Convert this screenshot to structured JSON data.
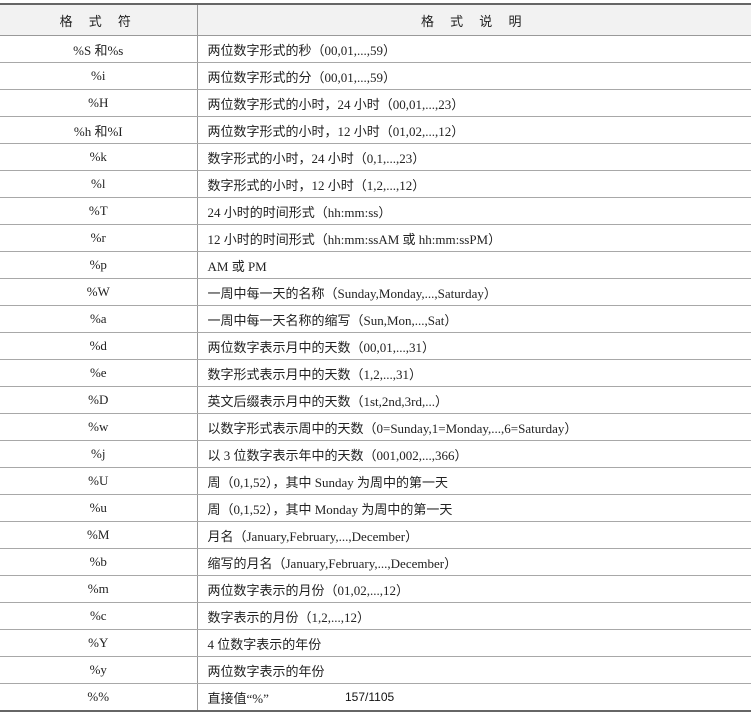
{
  "table": {
    "headers": [
      "格 式 符",
      "格 式 说 明"
    ],
    "rows": [
      [
        "%S 和%s",
        "两位数字形式的秒（00,01,...,59）"
      ],
      [
        "%i",
        "两位数字形式的分（00,01,...,59）"
      ],
      [
        "%H",
        "两位数字形式的小时，24 小时（00,01,...,23）"
      ],
      [
        "%h 和%I",
        "两位数字形式的小时，12 小时（01,02,...,12）"
      ],
      [
        "%k",
        "数字形式的小时，24 小时（0,1,...,23）"
      ],
      [
        "%l",
        "数字形式的小时，12 小时（1,2,...,12）"
      ],
      [
        "%T",
        "24 小时的时间形式（hh:mm:ss）"
      ],
      [
        "%r",
        "12 小时的时间形式（hh:mm:ssAM 或 hh:mm:ssPM）"
      ],
      [
        "%p",
        "AM 或 PM"
      ],
      [
        "%W",
        "一周中每一天的名称（Sunday,Monday,...,Saturday）"
      ],
      [
        "%a",
        "一周中每一天名称的缩写（Sun,Mon,...,Sat）"
      ],
      [
        "%d",
        "两位数字表示月中的天数（00,01,...,31）"
      ],
      [
        "%e",
        "数字形式表示月中的天数（1,2,...,31）"
      ],
      [
        "%D",
        "英文后缀表示月中的天数（1st,2nd,3rd,...）"
      ],
      [
        "%w",
        "以数字形式表示周中的天数（0=Sunday,1=Monday,...,6=Saturday）"
      ],
      [
        "%j",
        "以 3 位数字表示年中的天数（001,002,...,366）"
      ],
      [
        "%U",
        "周（0,1,52），其中 Sunday 为周中的第一天"
      ],
      [
        "%u",
        "周（0,1,52），其中 Monday 为周中的第一天"
      ],
      [
        "%M",
        "月名（January,February,...,December）"
      ],
      [
        "%b",
        "缩写的月名（January,February,...,December）"
      ],
      [
        "%m",
        "两位数字表示的月份（01,02,...,12）"
      ],
      [
        "%c",
        "数字表示的月份（1,2,...,12）"
      ],
      [
        "%Y",
        "4 位数字表示的年份"
      ],
      [
        "%y",
        "两位数字表示的年份"
      ],
      [
        "%%",
        "直接值“%”"
      ]
    ]
  },
  "page_indicator": "157/1105"
}
